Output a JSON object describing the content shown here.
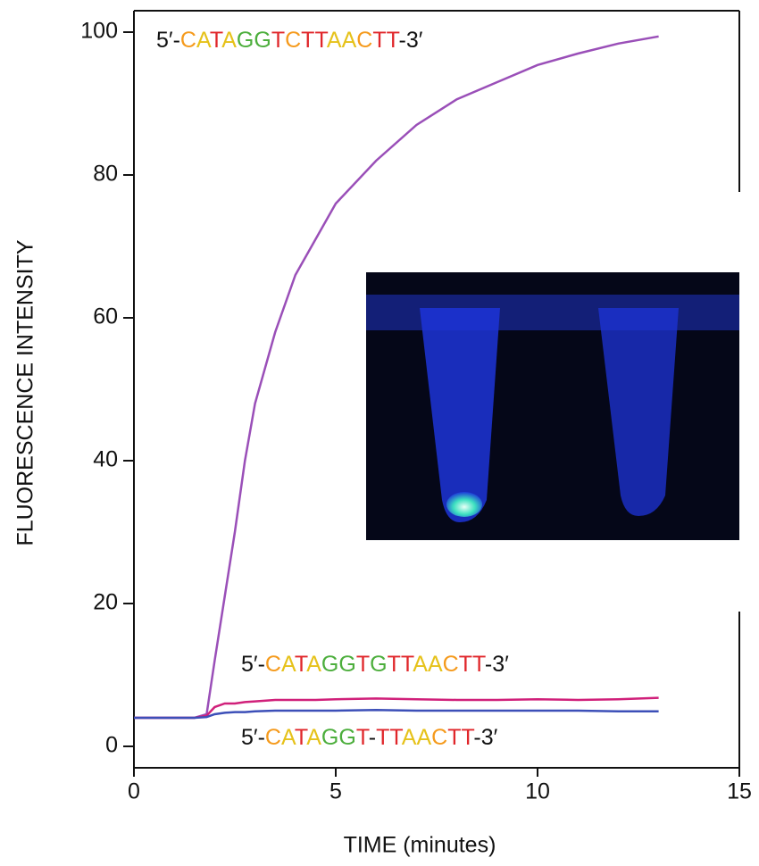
{
  "chart_data": {
    "type": "line",
    "xlabel": "TIME (minutes)",
    "ylabel": "FLUORESCENCE INTENSITY",
    "x": [
      0,
      0.5,
      1,
      1.5,
      1.8,
      2,
      2.25,
      2.5,
      2.75,
      3,
      3.5,
      4,
      4.5,
      5,
      6,
      7,
      8,
      9,
      10,
      11,
      12,
      13
    ],
    "series": [
      {
        "color": "#9a4fb8",
        "values": [
          4,
          4,
          4,
          4,
          4.5,
          12,
          21,
          30,
          40,
          48,
          58,
          66,
          71,
          76,
          82,
          87,
          90.6,
          93,
          95.4,
          97,
          98.4,
          99.4
        ]
      },
      {
        "color": "#d0207a",
        "values": [
          4,
          4,
          4,
          4,
          4.3,
          5.5,
          6,
          6,
          6.2,
          6.3,
          6.5,
          6.5,
          6.5,
          6.6,
          6.7,
          6.6,
          6.5,
          6.5,
          6.6,
          6.5,
          6.6,
          6.8
        ]
      },
      {
        "color": "#3c4fb8",
        "values": [
          4,
          4,
          4,
          4,
          4.1,
          4.5,
          4.7,
          4.8,
          4.8,
          4.9,
          5,
          5,
          5,
          5,
          5.1,
          5,
          5,
          5,
          5,
          5,
          4.9,
          4.9
        ]
      }
    ],
    "annotations": [
      "5′-CATAGGTCTTAACTT-3′",
      "5′-CATAGGTGTTAACTT-3′",
      "5′-CATAGGT-TTAACTT-3′"
    ],
    "xlim": [
      0,
      15
    ],
    "xticks": [
      0,
      5,
      10,
      15
    ],
    "ylim": [
      -3,
      103
    ],
    "yticks": [
      0,
      20,
      40,
      60,
      80,
      100
    ]
  }
}
